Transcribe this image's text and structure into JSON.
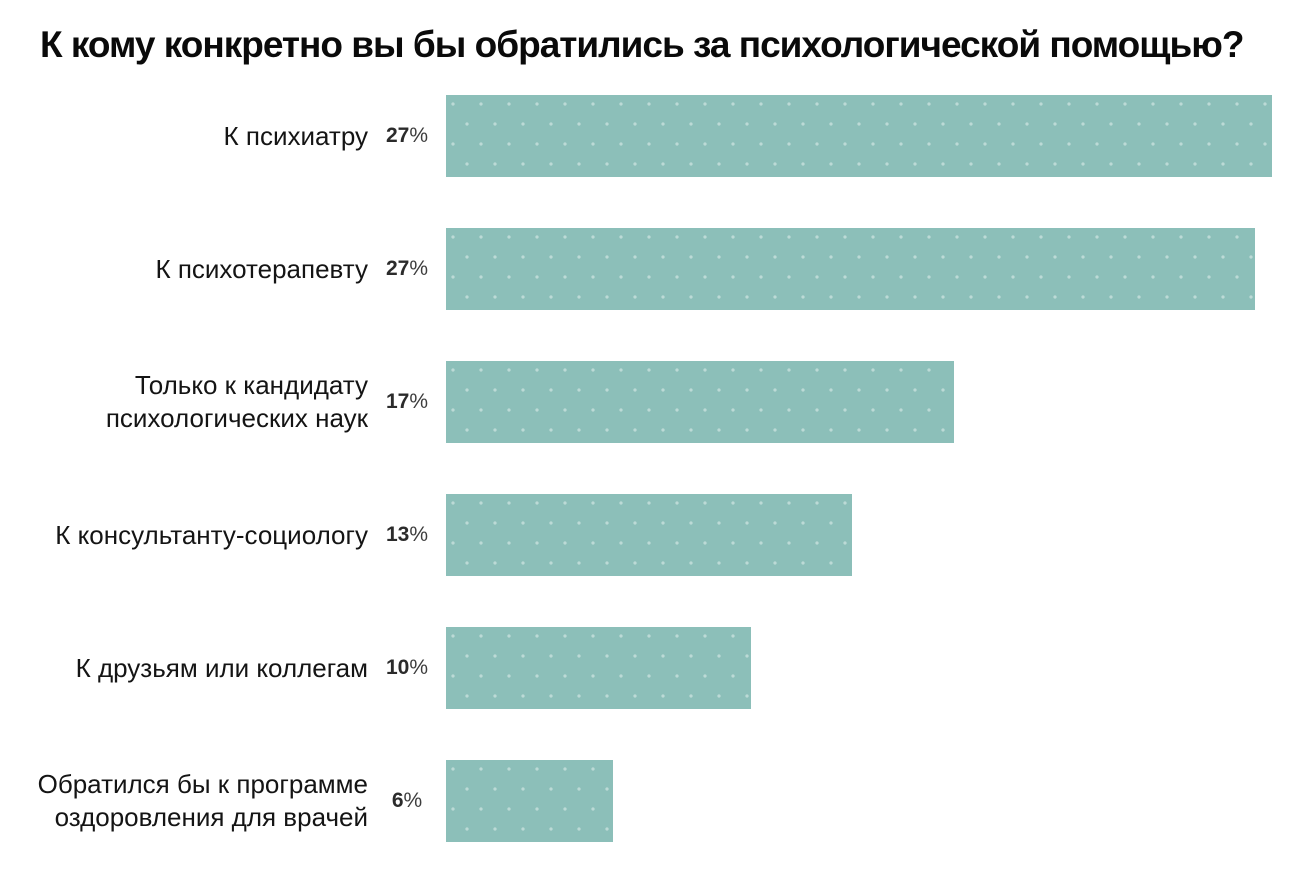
{
  "title": "К кому конкретно вы бы обратились за психологической помощью?",
  "colors": {
    "background": "#ffffff",
    "bar": "#8cbfb9",
    "bar_dot": "rgba(255,255,255,0.42)",
    "title_text": "#0a0a0a",
    "label_text": "#141414",
    "value_text": "#2b2b2b"
  },
  "chart_data": {
    "type": "bar",
    "orientation": "horizontal",
    "title": "К кому конкретно вы бы обратились за психологической помощью?",
    "categories": [
      "К психиатру",
      "К психотерапевту",
      "Только к кандидату психологических наук",
      "К консультанту-социологу",
      "К друзьям или коллегам",
      "Обратился бы к программе оздоровления для врачей"
    ],
    "values": [
      27,
      27,
      17,
      13,
      10,
      6
    ],
    "value_suffix": "%",
    "value_labels": [
      "27%",
      "27%",
      "17%",
      "13%",
      "10%",
      "6%"
    ],
    "bar_length_pct": [
      100,
      97.9,
      61.5,
      49.2,
      36.9,
      20.2
    ],
    "bar_color": "#8cbfb9",
    "xlabel": "",
    "ylabel": "",
    "grid": false,
    "legend": false,
    "axes_visible": false,
    "value_label_position": "left-of-bar"
  }
}
